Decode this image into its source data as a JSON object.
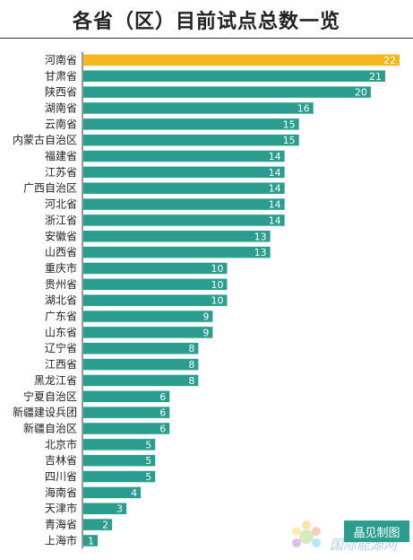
{
  "chart_data": {
    "type": "bar",
    "orientation": "horizontal",
    "title": "各省（区）目前试点总数一览",
    "categories": [
      "河南省",
      "甘肃省",
      "陕西省",
      "湖南省",
      "云南省",
      "内蒙古自治区",
      "福建省",
      "江苏省",
      "广西自治区",
      "河北省",
      "浙江省",
      "安徽省",
      "山西省",
      "重庆市",
      "贵州省",
      "湖北省",
      "广东省",
      "山东省",
      "辽宁省",
      "江西省",
      "黑龙江省",
      "宁夏自治区",
      "新疆建设兵团",
      "新疆自治区",
      "北京市",
      "吉林省",
      "四川省",
      "海南省",
      "天津市",
      "青海省",
      "上海市"
    ],
    "values": [
      22,
      21,
      20,
      16,
      15,
      15,
      14,
      14,
      14,
      14,
      14,
      13,
      13,
      10,
      10,
      10,
      9,
      9,
      8,
      8,
      8,
      6,
      6,
      6,
      5,
      5,
      5,
      4,
      3,
      2,
      1
    ],
    "highlight_index": 0,
    "colors": {
      "bar": "#2a9d8f",
      "highlight": "#f5b81c",
      "axis": "#333333"
    },
    "xlim": [
      0,
      22
    ],
    "grid": false,
    "legend": "none"
  },
  "credit": "晶见制图",
  "watermark_text": "国际能源网"
}
